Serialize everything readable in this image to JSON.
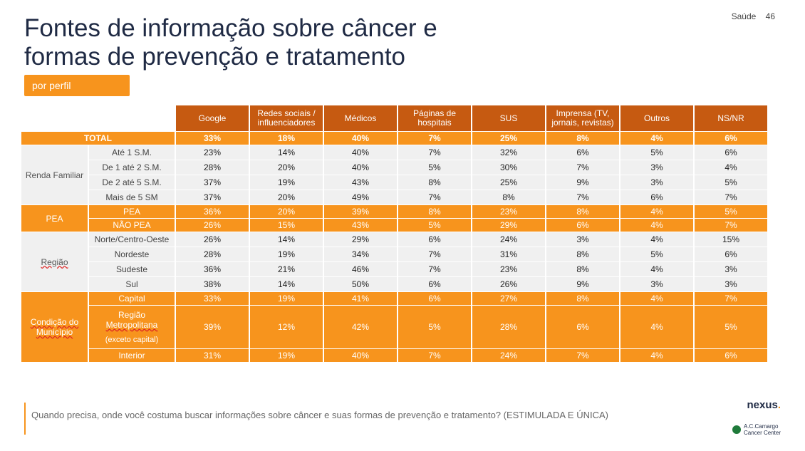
{
  "header": {
    "title_line1": "Fontes de informação sobre câncer e",
    "title_line2": "formas de prevenção e tratamento",
    "tag": "por perfil",
    "section": "Saúde",
    "page_number": "46"
  },
  "table": {
    "columns": [
      "Google",
      "Redes sociais / influenciadores",
      "Médicos",
      "Páginas de hospitais",
      "SUS",
      "Imprensa (TV, jornais, revistas)",
      "Outros",
      "NS/NR"
    ],
    "total": {
      "label": "TOTAL",
      "values": [
        "33%",
        "18%",
        "40%",
        "7%",
        "25%",
        "8%",
        "4%",
        "6%"
      ]
    },
    "groups": [
      {
        "name": "Renda Familiar",
        "style": "grey",
        "rows": [
          {
            "label": "Até 1 S.M.",
            "values": [
              "23%",
              "14%",
              "40%",
              "7%",
              "32%",
              "6%",
              "5%",
              "6%"
            ]
          },
          {
            "label": "De 1 até 2 S.M.",
            "values": [
              "28%",
              "20%",
              "40%",
              "5%",
              "30%",
              "7%",
              "3%",
              "4%"
            ]
          },
          {
            "label": "De 2 até 5 S.M.",
            "values": [
              "37%",
              "19%",
              "43%",
              "8%",
              "25%",
              "9%",
              "3%",
              "5%"
            ]
          },
          {
            "label": "Mais de 5 SM",
            "values": [
              "37%",
              "20%",
              "49%",
              "7%",
              "8%",
              "7%",
              "6%",
              "7%"
            ]
          }
        ]
      },
      {
        "name": "PEA",
        "style": "orange",
        "rows": [
          {
            "label": "PEA",
            "values": [
              "36%",
              "20%",
              "39%",
              "8%",
              "23%",
              "8%",
              "4%",
              "5%"
            ]
          },
          {
            "label": "NÃO PEA",
            "values": [
              "26%",
              "15%",
              "43%",
              "5%",
              "29%",
              "6%",
              "4%",
              "7%"
            ]
          }
        ]
      },
      {
        "name": "Região",
        "style": "grey",
        "rows": [
          {
            "label": "Norte/Centro-Oeste",
            "values": [
              "26%",
              "14%",
              "29%",
              "6%",
              "24%",
              "3%",
              "4%",
              "15%"
            ]
          },
          {
            "label": "Nordeste",
            "values": [
              "28%",
              "19%",
              "34%",
              "7%",
              "31%",
              "8%",
              "5%",
              "6%"
            ]
          },
          {
            "label": "Sudeste",
            "values": [
              "36%",
              "21%",
              "46%",
              "7%",
              "23%",
              "8%",
              "4%",
              "3%"
            ]
          },
          {
            "label": "Sul",
            "values": [
              "38%",
              "14%",
              "50%",
              "6%",
              "26%",
              "9%",
              "3%",
              "3%"
            ]
          }
        ]
      },
      {
        "name": "Condição do Município",
        "style": "orange",
        "rows": [
          {
            "label": "Capital",
            "values": [
              "33%",
              "19%",
              "41%",
              "6%",
              "27%",
              "8%",
              "4%",
              "7%"
            ]
          },
          {
            "label": "Região Metropolitana (exceto capital)",
            "label_line1": "Região",
            "label_line2": "Metropolitana",
            "label_line3": "(exceto capital)",
            "values": [
              "39%",
              "12%",
              "42%",
              "5%",
              "28%",
              "6%",
              "4%",
              "5%"
            ]
          },
          {
            "label": "Interior",
            "values": [
              "31%",
              "19%",
              "40%",
              "7%",
              "24%",
              "7%",
              "4%",
              "6%"
            ]
          }
        ]
      }
    ]
  },
  "footer": {
    "question": "Quando precisa, onde você costuma buscar informações sobre câncer e suas formas de prevenção e tratamento? (ESTIMULADA E ÚNICA)",
    "brand": "nexus",
    "brand_dot": ".",
    "logo_line1": "A.C.Camargo",
    "logo_line2": "Cancer Center"
  },
  "colors": {
    "accent": "#f7941d",
    "header": "#c65a11",
    "grey_row": "#f0f0f0",
    "title": "#1f2a44"
  }
}
